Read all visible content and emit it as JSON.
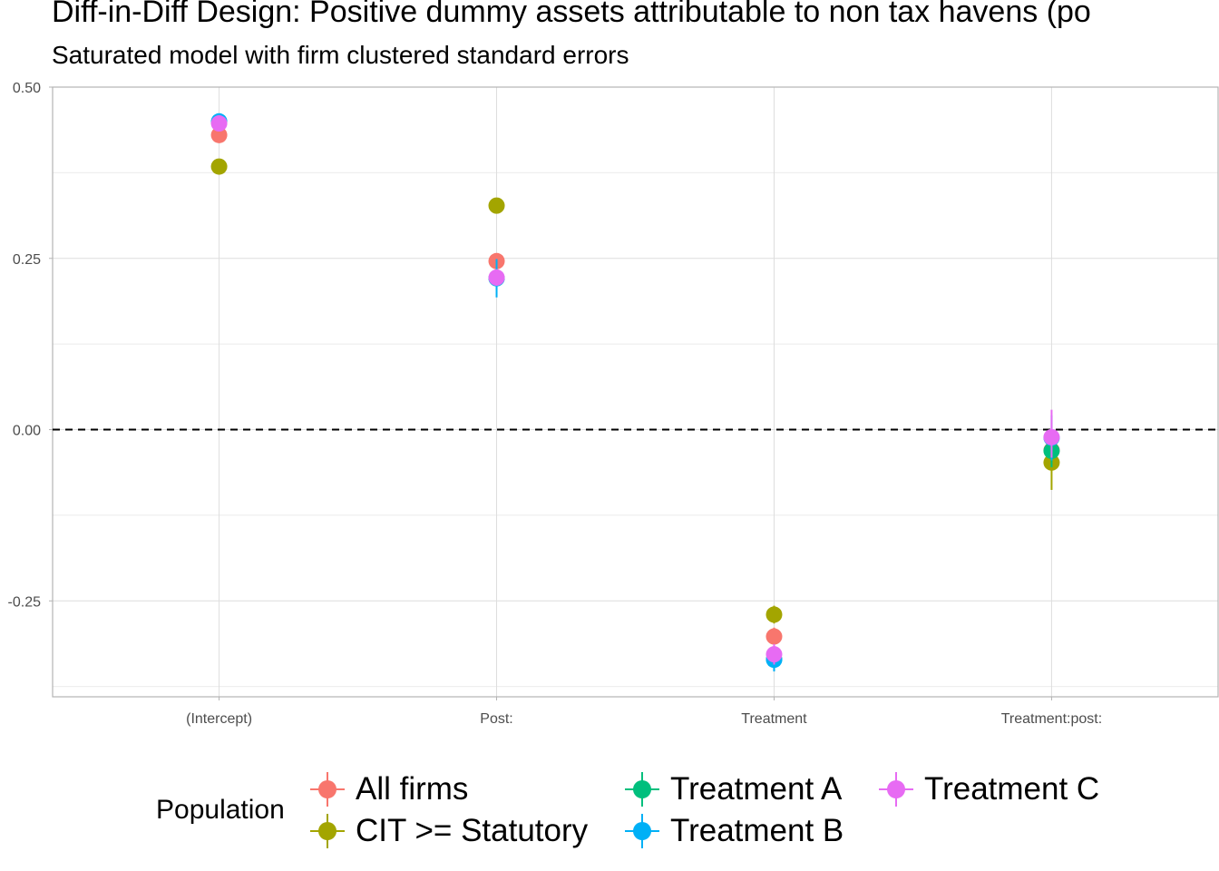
{
  "chart_data": {
    "type": "scatter",
    "title": "Diff-in-Diff Design: Positive dummy assets attributable to non tax havens (po",
    "subtitle": "Saturated model with firm clustered standard errors",
    "xlabel": "",
    "ylabel": "",
    "categories": [
      "(Intercept)",
      "Post:",
      "Treatment",
      "Treatment:post:"
    ],
    "ylim": [
      -0.39,
      0.5
    ],
    "yticks": [
      0.5,
      0.25,
      0.0,
      -0.25
    ],
    "ytick_labels": [
      "0.50",
      "0.25",
      "0.00",
      "-0.25"
    ],
    "reference_line": {
      "y": 0,
      "style": "dashed"
    },
    "grid": true,
    "legend": {
      "title": "Population",
      "position": "bottom"
    },
    "series": [
      {
        "name": "All firms",
        "color": "#F8766D",
        "values": [
          0.43,
          0.246,
          -0.302,
          -0.03
        ],
        "ci_low": [
          0.423,
          0.238,
          -0.315,
          -0.045
        ],
        "ci_high": [
          0.437,
          0.254,
          -0.289,
          -0.015
        ]
      },
      {
        "name": "CIT >= Statutory",
        "color": "#A3A500",
        "values": [
          0.384,
          0.327,
          -0.27,
          -0.048
        ],
        "ci_low": [
          0.376,
          0.317,
          -0.283,
          -0.088
        ],
        "ci_high": [
          0.392,
          0.337,
          -0.257,
          -0.008
        ]
      },
      {
        "name": "Treatment A",
        "color": "#00BF7D",
        "values": [
          0.449,
          0.221,
          -0.335,
          -0.031
        ],
        "ci_low": [
          0.44,
          0.205,
          -0.352,
          -0.055
        ],
        "ci_high": [
          0.458,
          0.237,
          -0.318,
          -0.007
        ]
      },
      {
        "name": "Treatment B",
        "color": "#00B0F6",
        "values": [
          0.45,
          0.221,
          -0.336,
          -0.012
        ],
        "ci_low": [
          0.441,
          0.193,
          -0.353,
          -0.045
        ],
        "ci_high": [
          0.459,
          0.249,
          -0.319,
          0.021
        ]
      },
      {
        "name": "Treatment C",
        "color": "#E76BF3",
        "values": [
          0.447,
          0.222,
          -0.328,
          -0.011
        ],
        "ci_low": [
          0.439,
          0.21,
          -0.343,
          -0.041
        ],
        "ci_high": [
          0.455,
          0.234,
          -0.313,
          0.029
        ]
      }
    ]
  }
}
